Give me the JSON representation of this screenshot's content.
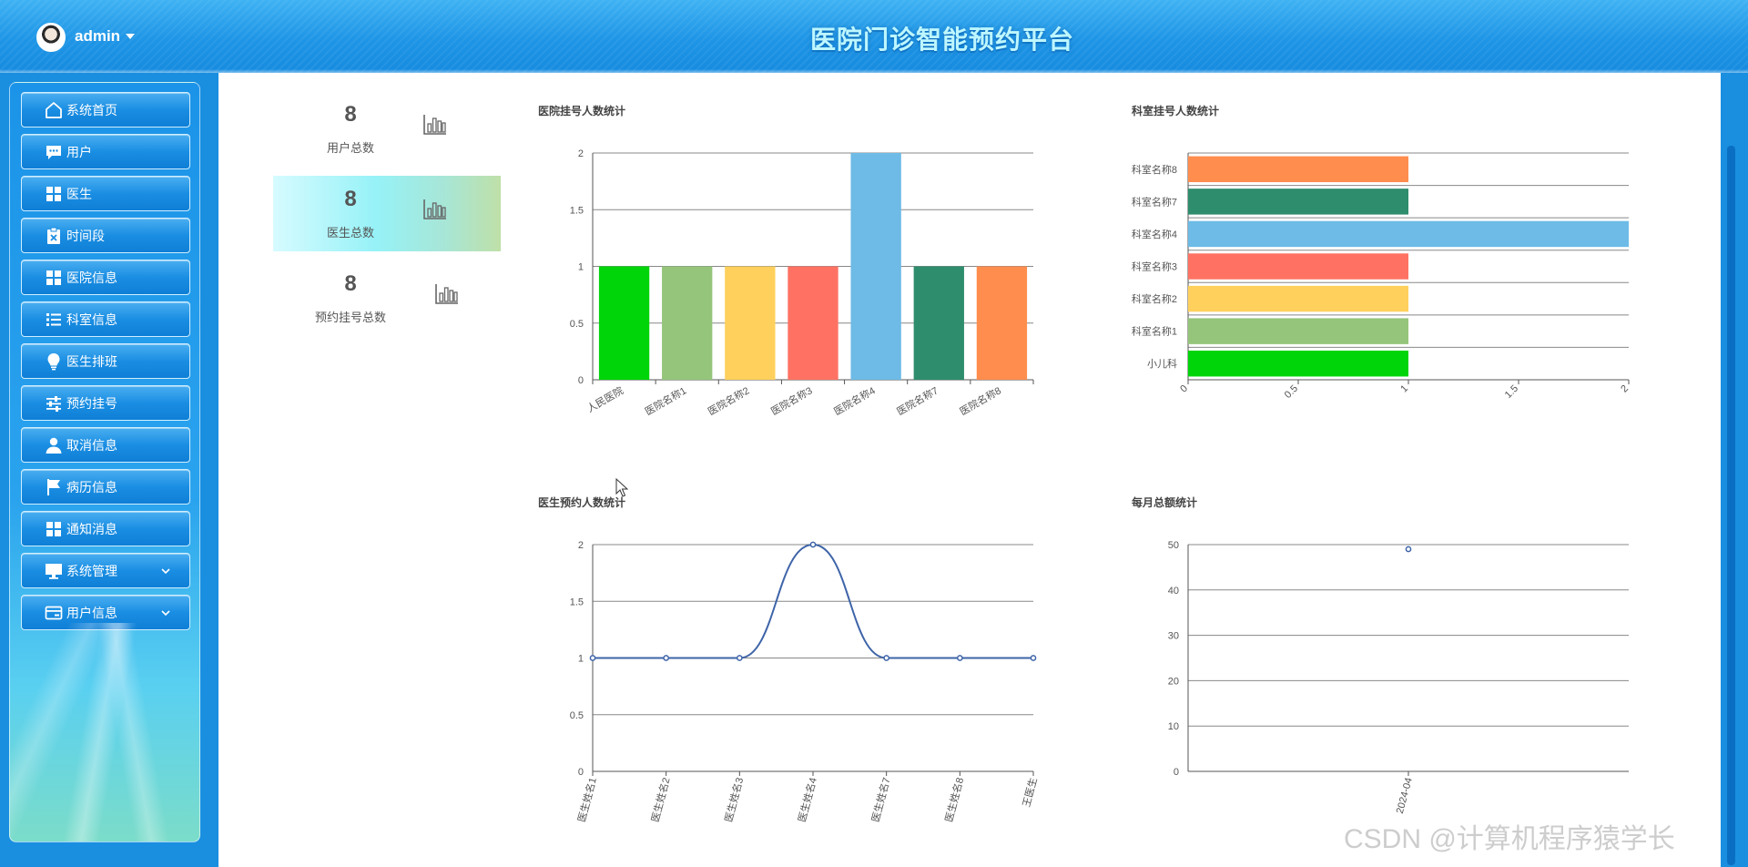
{
  "header": {
    "username": "admin",
    "title": "医院门诊智能预约平台"
  },
  "sidebar": {
    "items": [
      {
        "label": "系统首页",
        "icon": "home-icon",
        "name": "sidebar-item-home"
      },
      {
        "label": "用户",
        "icon": "chat-icon",
        "name": "sidebar-item-users"
      },
      {
        "label": "医生",
        "icon": "grid-icon",
        "name": "sidebar-item-doctors"
      },
      {
        "label": "时间段",
        "icon": "clipboard-icon",
        "name": "sidebar-item-timeslots"
      },
      {
        "label": "医院信息",
        "icon": "grid-icon",
        "name": "sidebar-item-hospital-info"
      },
      {
        "label": "科室信息",
        "icon": "list-icon",
        "name": "sidebar-item-department-info"
      },
      {
        "label": "医生排班",
        "icon": "bulb-icon",
        "name": "sidebar-item-doctor-schedule"
      },
      {
        "label": "预约挂号",
        "icon": "sliders-icon",
        "name": "sidebar-item-appointments"
      },
      {
        "label": "取消信息",
        "icon": "person-icon",
        "name": "sidebar-item-cancellations"
      },
      {
        "label": "病历信息",
        "icon": "flag-icon",
        "name": "sidebar-item-medical-records"
      },
      {
        "label": "通知消息",
        "icon": "grid-icon",
        "name": "sidebar-item-notifications"
      },
      {
        "label": "系统管理",
        "icon": "monitor-icon",
        "name": "sidebar-item-system-management",
        "expandable": true
      },
      {
        "label": "用户信息",
        "icon": "card-icon",
        "name": "sidebar-item-user-info",
        "expandable": true
      }
    ]
  },
  "stats": [
    {
      "value": "8",
      "label": "用户总数",
      "icon": "bar-chart-icon"
    },
    {
      "value": "8",
      "label": "医生总数",
      "icon": "bar-chart-icon"
    },
    {
      "value": "8",
      "label": "预约挂号总数",
      "icon": "bar-chart-icon"
    }
  ],
  "charts": {
    "hospital": {
      "title": "医院挂号人数统计"
    },
    "department": {
      "title": "科室挂号人数统计"
    },
    "doctor": {
      "title": "医生预约人数统计"
    },
    "monthly": {
      "title": "每月总额统计"
    }
  },
  "chart_data": [
    {
      "type": "bar",
      "title": "医院挂号人数统计",
      "categories": [
        "人民医院",
        "医院名称1",
        "医院名称2",
        "医院名称3",
        "医院名称4",
        "医院名称7",
        "医院名称8"
      ],
      "values": [
        1,
        1,
        1,
        1,
        2,
        1,
        1
      ],
      "colors": [
        "#00d50a",
        "#95c57a",
        "#ffd05c",
        "#ff7263",
        "#6dbbe6",
        "#2e8d6c",
        "#ff8d4e"
      ],
      "ylim": [
        0,
        2
      ],
      "yticks": [
        "0",
        "0.5",
        "1",
        "1.5",
        "2"
      ],
      "grid": true
    },
    {
      "type": "bar",
      "orientation": "horizontal",
      "title": "科室挂号人数统计",
      "categories": [
        "小儿科",
        "科室名称1",
        "科室名称2",
        "科室名称3",
        "科室名称4",
        "科室名称7",
        "科室名称8"
      ],
      "values": [
        1,
        1,
        1,
        1,
        2,
        1,
        1
      ],
      "colors": [
        "#00d50a",
        "#95c57a",
        "#ffd05c",
        "#ff7263",
        "#6dbbe6",
        "#2e8d6c",
        "#ff8d4e"
      ],
      "xlim": [
        0,
        2
      ],
      "xticks": [
        "0",
        "0.5",
        "1",
        "1.5",
        "2"
      ],
      "grid": true
    },
    {
      "type": "line",
      "title": "医生预约人数统计",
      "categories": [
        "医生姓名1",
        "医生姓名2",
        "医生姓名3",
        "医生姓名4",
        "医生姓名7",
        "医生姓名8",
        "王医生"
      ],
      "values": [
        1,
        1,
        1,
        2,
        1,
        1,
        1
      ],
      "color": "#3e64a8",
      "smooth": true,
      "ylim": [
        0,
        2
      ],
      "yticks": [
        "0",
        "0.5",
        "1",
        "1.5",
        "2"
      ],
      "grid": true
    },
    {
      "type": "scatter",
      "title": "每月总额统计",
      "categories": [
        "2024-04"
      ],
      "values": [
        49
      ],
      "color": "#3e64a8",
      "ylim": [
        0,
        50
      ],
      "yticks": [
        "0",
        "10",
        "20",
        "30",
        "40",
        "50"
      ],
      "grid": true
    }
  ],
  "watermark": "CSDN @计算机程序猿学长"
}
